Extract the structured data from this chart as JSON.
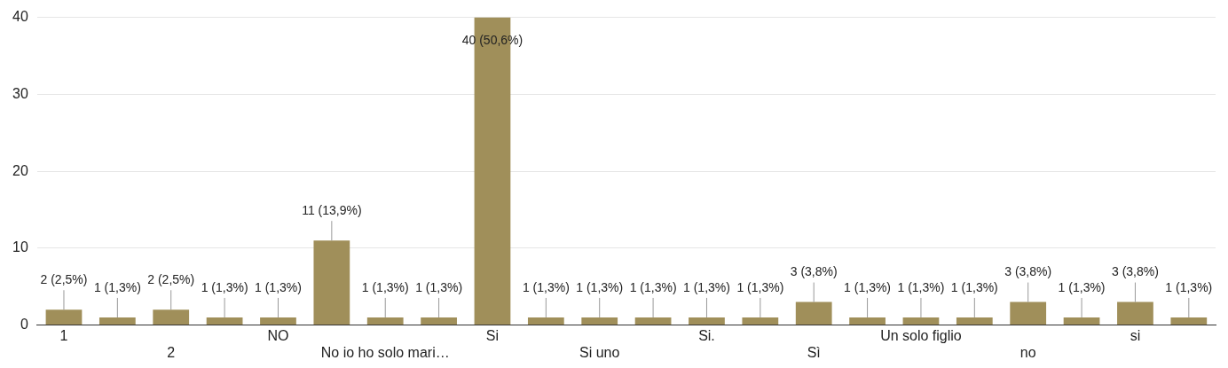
{
  "chart_data": {
    "type": "bar",
    "categories": [
      "1",
      null,
      "2",
      null,
      "NO",
      null,
      "No io ho solo mari…",
      null,
      "Si",
      null,
      "Si uno",
      null,
      "Si.",
      null,
      "Sì",
      null,
      "Un solo figlio",
      null,
      "no",
      null,
      "si",
      null
    ],
    "values": [
      2,
      1,
      2,
      1,
      1,
      11,
      1,
      1,
      40,
      1,
      1,
      1,
      1,
      1,
      3,
      1,
      1,
      1,
      3,
      1,
      3,
      1
    ],
    "value_labels": [
      "2 (2,5%)",
      "1 (1,3%)",
      "2 (2,5%)",
      "1 (1,3%)",
      "1 (1,3%)",
      "11 (13,9%)",
      "1 (1,3%)",
      "1 (1,3%)",
      "40 (50,6%)",
      "1 (1,3%)",
      "1 (1,3%)",
      "1 (1,3%)",
      "1 (1,3%)",
      "1 (1,3%)",
      "3 (3,8%)",
      "1 (1,3%)",
      "1 (1,3%)",
      "1 (1,3%)",
      "3 (3,8%)",
      "1 (1,3%)",
      "3 (3,8%)",
      "1 (1,3%)"
    ],
    "color": "#a08f5a",
    "ylim": [
      0,
      40
    ],
    "yticks": [
      0,
      10,
      20,
      30,
      40
    ],
    "grid": "y",
    "legend": false
  }
}
